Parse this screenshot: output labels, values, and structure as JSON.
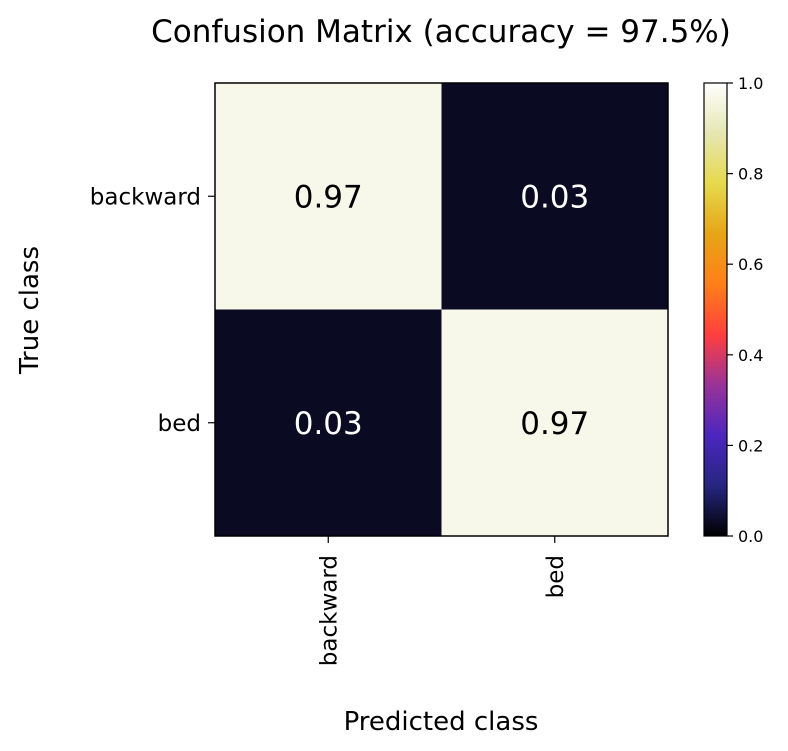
{
  "chart_data": {
    "type": "heatmap",
    "title": "Confusion Matrix (accuracy = 97.5%)",
    "xlabel": "Predicted class",
    "ylabel": "True class",
    "x_categories": [
      "backward",
      "bed"
    ],
    "y_categories": [
      "backward",
      "bed"
    ],
    "values": [
      [
        0.97,
        0.03
      ],
      [
        0.03,
        0.97
      ]
    ],
    "cell_labels": [
      [
        "0.97",
        "0.03"
      ],
      [
        "0.03",
        "0.97"
      ]
    ],
    "colormap": "CMRmap",
    "colorbar": {
      "range": [
        0.0,
        1.0
      ],
      "ticks": [
        "0.0",
        "0.2",
        "0.4",
        "0.6",
        "0.8",
        "1.0"
      ],
      "stops": [
        "#000000",
        "#262680",
        "#4c26bf",
        "#993399",
        "#ff3f3f",
        "#ff7f19",
        "#e6a517",
        "#e6d94c",
        "#e6e6b3",
        "#ffffff"
      ]
    },
    "grid": false,
    "legend": "colorbar-right"
  }
}
